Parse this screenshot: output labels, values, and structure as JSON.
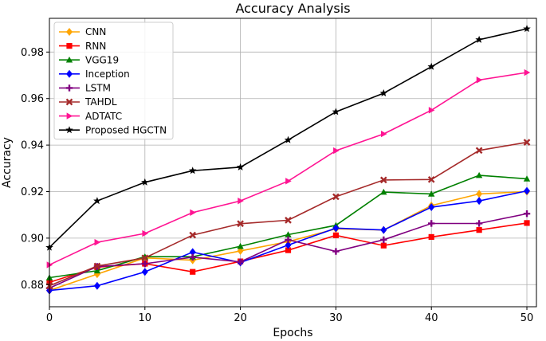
{
  "chart_data": {
    "type": "line",
    "title": "Accuracy Analysis",
    "xlabel": "Epochs",
    "ylabel": "Accuracy",
    "xlim": [
      0,
      51
    ],
    "ylim": [
      0.8705,
      0.9945
    ],
    "xticks": [
      0,
      10,
      20,
      30,
      40,
      50
    ],
    "yticks": [
      0.88,
      0.9,
      0.92,
      0.94,
      0.96,
      0.98
    ],
    "ytick_labels": [
      "0.88",
      "0.90",
      "0.92",
      "0.94",
      "0.96",
      "0.98"
    ],
    "grid": true,
    "legend_position": "top-left",
    "x": [
      0,
      5,
      10,
      15,
      20,
      25,
      30,
      35,
      40,
      45,
      50
    ],
    "series": [
      {
        "name": "CNN",
        "color": "#FFA500",
        "marker": "diamond",
        "values": [
          0.8775,
          0.8845,
          0.8915,
          0.8905,
          0.8945,
          0.8985,
          0.904,
          0.9035,
          0.914,
          0.919,
          0.92
        ]
      },
      {
        "name": "RNN",
        "color": "#FF0000",
        "marker": "square",
        "values": [
          0.881,
          0.8875,
          0.889,
          0.8855,
          0.89,
          0.8948,
          0.9012,
          0.8968,
          0.9005,
          0.9035,
          0.9065
        ]
      },
      {
        "name": "VGG19",
        "color": "#008000",
        "marker": "triangle-up",
        "values": [
          0.883,
          0.886,
          0.892,
          0.892,
          0.8965,
          0.9015,
          0.9055,
          0.9198,
          0.919,
          0.927,
          0.9255
        ]
      },
      {
        "name": "Inception",
        "color": "#0000FF",
        "marker": "diamond",
        "values": [
          0.8775,
          0.8795,
          0.8855,
          0.894,
          0.8895,
          0.897,
          0.9043,
          0.9035,
          0.9133,
          0.916,
          0.9203
        ]
      },
      {
        "name": "LSTM",
        "color": "#800080",
        "marker": "plus",
        "values": [
          0.8785,
          0.8878,
          0.889,
          0.8918,
          0.8898,
          0.8993,
          0.8943,
          0.8993,
          0.9063,
          0.9063,
          0.9105
        ]
      },
      {
        "name": "TAHDL",
        "color": "#A52A2A",
        "marker": "x",
        "values": [
          0.8795,
          0.888,
          0.8915,
          0.9013,
          0.9062,
          0.9077,
          0.9178,
          0.925,
          0.9252,
          0.9377,
          0.9412
        ]
      },
      {
        "name": "ADTATC",
        "color": "#FF1493",
        "marker": "triangle-right",
        "values": [
          0.8885,
          0.8982,
          0.902,
          0.911,
          0.916,
          0.9245,
          0.9376,
          0.9448,
          0.955,
          0.968,
          0.9712
        ]
      },
      {
        "name": "Proposed HGCTN",
        "color": "#000000",
        "marker": "star",
        "values": [
          0.896,
          0.916,
          0.924,
          0.929,
          0.9305,
          0.9422,
          0.9543,
          0.9623,
          0.9737,
          0.9853,
          0.99
        ]
      }
    ]
  }
}
